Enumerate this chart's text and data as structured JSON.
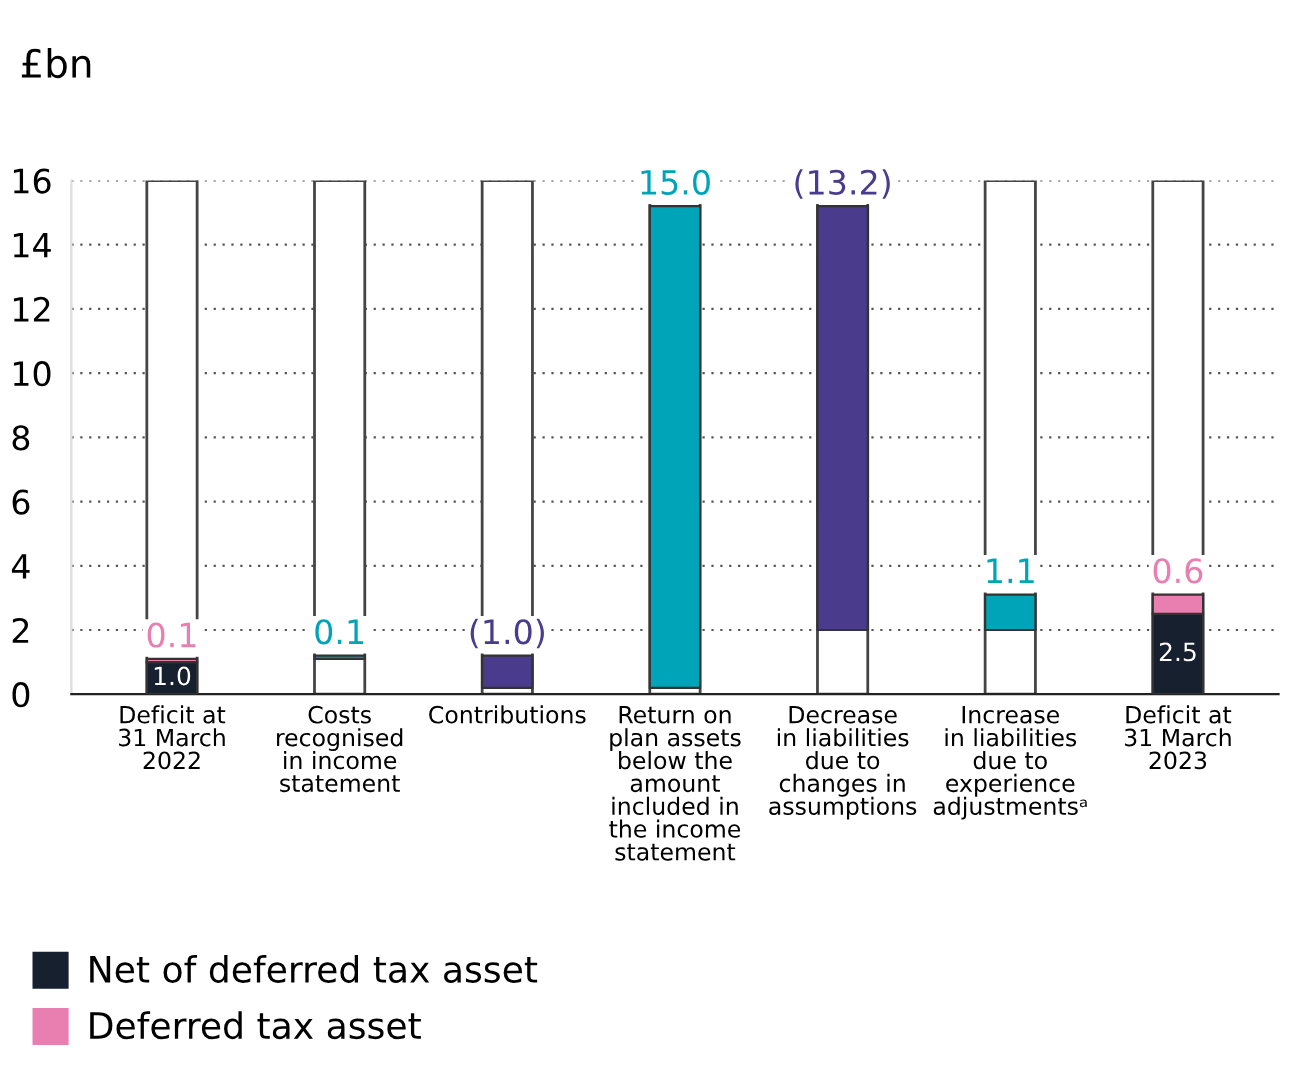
{
  "chart_data": {
    "type": "bar",
    "ylabel": "£bn",
    "categories": [
      "Deficit at\n31 March\n2022",
      "Costs\nrecognised\nin income\nstatement",
      "Contributions",
      "Return on\nplan assets\nbelow the\namount\nincluded in\nthe income\nstatement",
      "Decrease\nin liabilities\ndue to\nchanges in\nassumptions",
      "Increase\nin liabilities\ndue to\nexperience\nadjustmentsᵃ",
      "Deficit at\n31 March\n2023"
    ],
    "series": [
      {
        "name": "Net of deferred tax asset",
        "color": "#16202f",
        "values": [
          1.0,
          null,
          null,
          null,
          null,
          null,
          2.5
        ],
        "base": [
          0,
          null,
          null,
          null,
          null,
          null,
          0
        ],
        "value_labels": [
          "1.0",
          null,
          null,
          null,
          null,
          null,
          "2.5"
        ]
      },
      {
        "name": "Deferred tax asset",
        "color": "#e87fb0",
        "values": [
          0.1,
          null,
          null,
          null,
          null,
          null,
          0.6
        ],
        "base": [
          1.0,
          null,
          null,
          null,
          null,
          null,
          2.5
        ],
        "value_labels": [
          "0.1",
          null,
          null,
          null,
          null,
          null,
          "0.6"
        ]
      },
      {
        "color": "#00a4b8",
        "values": [
          null,
          0.1,
          null,
          15.0,
          null,
          1.1,
          null
        ],
        "base": [
          null,
          1.1,
          null,
          0.2,
          null,
          2.0,
          null
        ],
        "value_labels": [
          null,
          "0.1",
          null,
          "15.0",
          null,
          "1.1",
          null
        ]
      },
      {
        "color": "#4a3b8c",
        "values": [
          null,
          null,
          -1.0,
          null,
          -13.2,
          null,
          null
        ],
        "base": [
          null,
          null,
          1.2,
          null,
          15.2,
          null,
          null
        ],
        "value_labels": [
          null,
          null,
          "(1.0)",
          null,
          "(13.2)",
          null,
          null
        ]
      }
    ],
    "ylim": [
      0,
      16
    ],
    "yticks": [
      0,
      2,
      4,
      6,
      8,
      10,
      12,
      14,
      16
    ],
    "grid": "y",
    "legend": "bottom left"
  }
}
